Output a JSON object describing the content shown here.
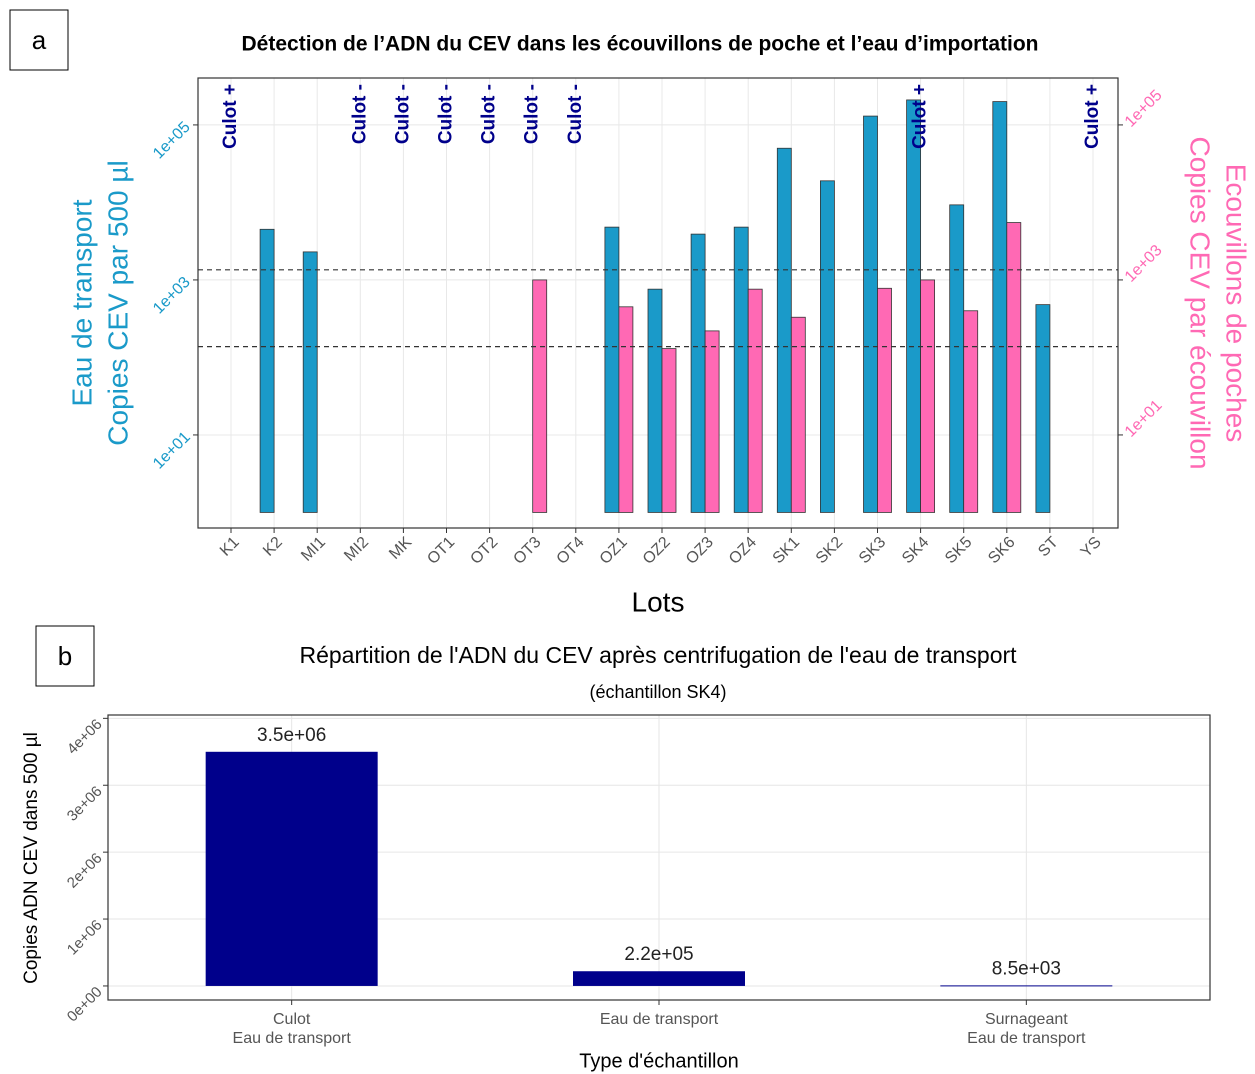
{
  "chart_data": [
    {
      "type": "bar",
      "panel": "a",
      "title": "Détection de l’ADN du CEV dans les écouvillons de poche et l’eau d’importation",
      "xlabel": "Lots",
      "ylabel": [
        "Eau de transport",
        "Copies CEV par 500 µl"
      ],
      "y2label": [
        "Ecouvillons de poches",
        "Copies CEV par écouvillon"
      ],
      "categories": [
        "K1",
        "K2",
        "MI1",
        "MI2",
        "MK",
        "OT1",
        "OT2",
        "OT3",
        "OT4",
        "OZ1",
        "OZ2",
        "OZ3",
        "OZ4",
        "SK1",
        "SK2",
        "SK3",
        "SK4",
        "SK5",
        "SK6",
        "ST",
        "YS"
      ],
      "series": [
        {
          "name": "Eau de transport",
          "color": "#1a9ac9",
          "values": [
            1,
            4500,
            2300,
            1,
            1,
            1,
            1,
            1,
            1,
            4800,
            760,
            3900,
            4800,
            50000,
            19000,
            130000,
            210000,
            9300,
            200000,
            480,
            1
          ]
        },
        {
          "name": "Ecouvillons de poches",
          "color": "#ff69b4",
          "axis": "y2",
          "values": [
            1,
            1,
            1,
            1,
            1,
            1,
            1,
            1000,
            1,
            450,
            130,
            220,
            760,
            330,
            1,
            780,
            1000,
            400,
            5500,
            1,
            1
          ]
        }
      ],
      "log_scale": true,
      "ylim": [
        0.63,
        403000
      ],
      "yticks": [
        {
          "value": 10,
          "label": "1e+01"
        },
        {
          "value": 1000,
          "label": "1e+03"
        },
        {
          "value": 100000,
          "label": "1e+05"
        }
      ],
      "y2lim": [
        0.63,
        403000
      ],
      "y2ticks": [
        {
          "value": 10,
          "label": "1e+01"
        },
        {
          "value": 1000,
          "label": "1e+03"
        },
        {
          "value": 100000,
          "label": "1e+05"
        }
      ],
      "hlines": [
        1350,
        138
      ],
      "grid": true,
      "annotations": [
        {
          "category": "K1",
          "text": "Culot +"
        },
        {
          "category": "MI2",
          "text": "Culot -"
        },
        {
          "category": "MK",
          "text": "Culot -"
        },
        {
          "category": "OT1",
          "text": "Culot -"
        },
        {
          "category": "OT2",
          "text": "Culot -"
        },
        {
          "category": "OT3",
          "text": "Culot -"
        },
        {
          "category": "OT4",
          "text": "Culot -"
        },
        {
          "category": "SK4",
          "text": "Culot +"
        },
        {
          "category": "YS",
          "text": "Culot +"
        }
      ]
    },
    {
      "type": "bar",
      "panel": "b",
      "title": "Répartition de l'ADN du CEV après centrifugation de l'eau de transport",
      "subtitle": "(échantillon SK4)",
      "xlabel": "Type d'échantillon",
      "ylabel": "Copies ADN CEV dans 500 µl",
      "categories": [
        [
          "Culot",
          "Eau de transport"
        ],
        [
          "Eau de transport"
        ],
        [
          "Surnageant",
          "Eau de transport"
        ]
      ],
      "values": [
        3500000,
        220000,
        8500
      ],
      "value_labels": [
        "3.5e+06",
        "2.2e+05",
        "8.5e+03"
      ],
      "color": "#00008b",
      "ylim": [
        -210000,
        4050000
      ],
      "yticks": [
        {
          "value": 0,
          "label": "0e+00"
        },
        {
          "value": 1000000,
          "label": "1e+06"
        },
        {
          "value": 2000000,
          "label": "2e+06"
        },
        {
          "value": 3000000,
          "label": "3e+06"
        },
        {
          "value": 4000000,
          "label": "4e+06"
        }
      ],
      "grid": true
    }
  ]
}
